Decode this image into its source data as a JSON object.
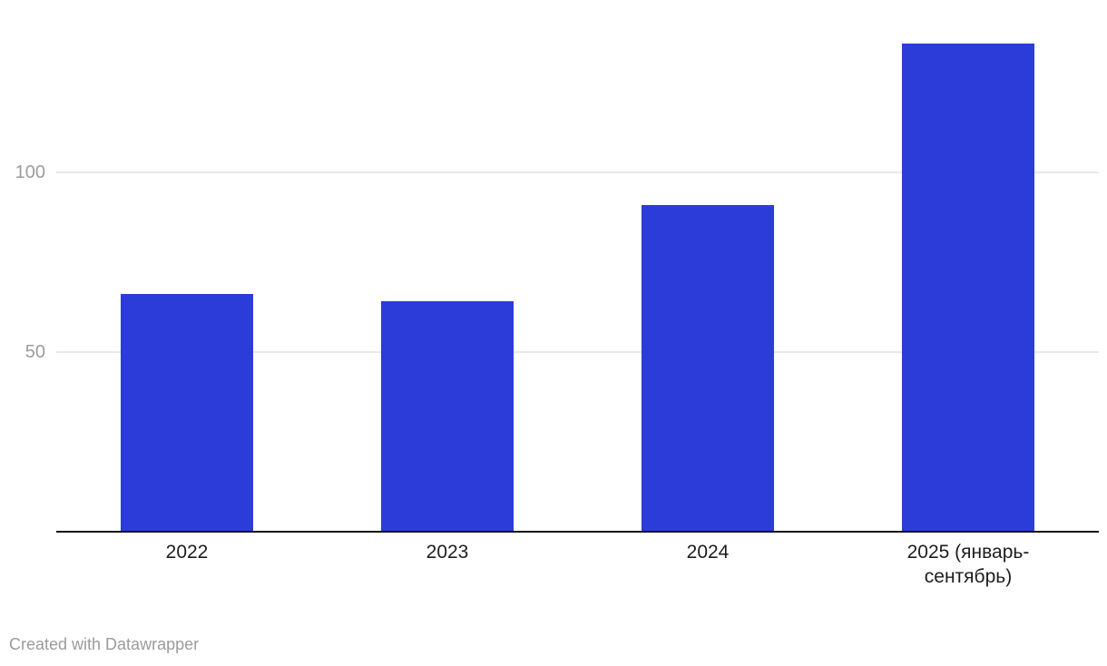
{
  "chart_data": {
    "type": "bar",
    "categories": [
      "2022",
      "2023",
      "2024",
      "2025 (январь-сентябрь)"
    ],
    "values": [
      66,
      64,
      91,
      136
    ],
    "yticks": [
      50,
      100
    ],
    "ylim": [
      0,
      148
    ],
    "grid": "horizontal-only",
    "legend": "none",
    "bar_color": "#2b3cd8"
  },
  "colors": {
    "background": "#ffffff",
    "bar": "#2b3cd8",
    "gridline": "#e8e8e8",
    "axis_line": "#151515",
    "y_tick_label": "#9c9c9c",
    "category_label": "#1d1d1d",
    "footer_text": "#9b9b9b"
  },
  "footer": {
    "attribution": "Created with Datawrapper"
  }
}
